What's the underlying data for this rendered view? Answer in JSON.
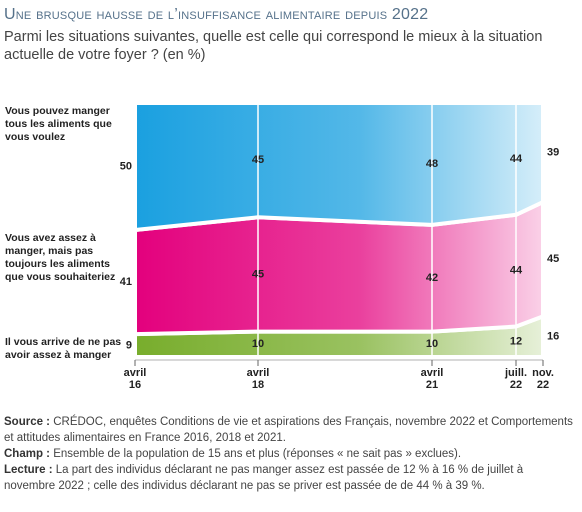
{
  "title": "Une brusque hausse de l’insuffisance alimentaire depuis 2022",
  "subtitle": "Parmi les situations suivantes, quelle est celle qui correspond le mieux à la situation actuelle de votre foyer ? (en %)",
  "chart_data": {
    "type": "stacked-area",
    "categories": [
      "avril 16",
      "avril 18",
      "avril 21",
      "juill. 22",
      "nov. 22"
    ],
    "series": [
      {
        "name": "Vous pouvez manger tous les aliments que vous voulez",
        "color": "#1aa0e0",
        "values": [
          50,
          45,
          48,
          44,
          39
        ]
      },
      {
        "name": "Vous avez assez à manger, mais pas toujours les aliments que vous souhaiteriez",
        "color": "#e3007d",
        "values": [
          41,
          45,
          42,
          44,
          45
        ]
      },
      {
        "name": "Il vous arrive de ne pas avoir assez à manger",
        "color": "#78ad2c",
        "values": [
          9,
          10,
          10,
          12,
          16
        ]
      }
    ]
  },
  "notes": [
    {
      "label": "Source :",
      "text": "CRÉDOC, enquêtes Conditions de vie et aspirations des Français, novembre 2022 et Comportements et attitudes alimentaires en France 2016, 2018 et 2021."
    },
    {
      "label": "Champ :",
      "text": "Ensemble de la population de 15 ans et plus (réponses « ne sait pas » exclues)."
    },
    {
      "label": "Lecture :",
      "text": "La part des individus déclarant ne pas manger assez est passée de 12 % à 16 % de juillet à novembre 2022 ; celle des individus déclarant ne pas se priver est passée de de 44 % à 39 %."
    }
  ]
}
